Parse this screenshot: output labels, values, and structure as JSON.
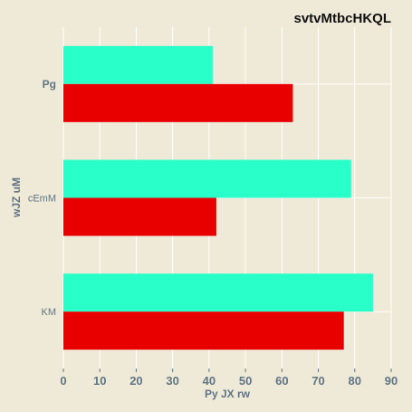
{
  "chart_data": {
    "type": "bar",
    "orientation": "horizontal",
    "title": "svtvMtbcHKQL",
    "xlabel": "Py JX rw",
    "ylabel": "wJZ uM",
    "categories": [
      "Pg",
      "cEmM",
      "KM"
    ],
    "series": [
      {
        "color": "#29ffc8",
        "values": [
          41,
          79,
          85
        ]
      },
      {
        "color": "#e80000",
        "values": [
          63,
          42,
          77
        ]
      }
    ],
    "xlim": [
      0,
      90
    ],
    "xticks": [
      "0",
      "10",
      "20",
      "30",
      "40",
      "50",
      "60",
      "70",
      "80",
      "90"
    ],
    "grid": true,
    "legend": "none",
    "background_color": "#efe9d7",
    "grid_color": "#ffffff",
    "text_color": "#5f7685"
  }
}
